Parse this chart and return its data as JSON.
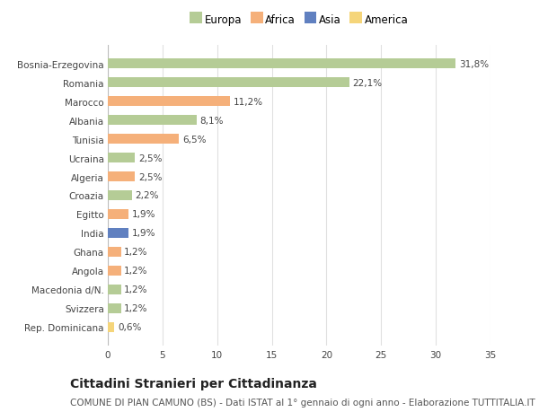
{
  "categories": [
    "Rep. Dominicana",
    "Svizzera",
    "Macedonia d/N.",
    "Angola",
    "Ghana",
    "India",
    "Egitto",
    "Croazia",
    "Algeria",
    "Ucraina",
    "Tunisia",
    "Albania",
    "Marocco",
    "Romania",
    "Bosnia-Erzegovina"
  ],
  "values": [
    0.6,
    1.2,
    1.2,
    1.2,
    1.2,
    1.9,
    1.9,
    2.2,
    2.5,
    2.5,
    6.5,
    8.1,
    11.2,
    22.1,
    31.8
  ],
  "labels": [
    "0,6%",
    "1,2%",
    "1,2%",
    "1,2%",
    "1,2%",
    "1,9%",
    "1,9%",
    "2,2%",
    "2,5%",
    "2,5%",
    "6,5%",
    "8,1%",
    "11,2%",
    "22,1%",
    "31,8%"
  ],
  "colors": [
    "#f5d57a",
    "#b5cc96",
    "#b5cc96",
    "#f5b07a",
    "#f5b07a",
    "#6080c0",
    "#f5b07a",
    "#b5cc96",
    "#f5b07a",
    "#b5cc96",
    "#f5b07a",
    "#b5cc96",
    "#f5b07a",
    "#b5cc96",
    "#b5cc96"
  ],
  "legend": [
    {
      "label": "Europa",
      "color": "#b5cc96"
    },
    {
      "label": "Africa",
      "color": "#f5b07a"
    },
    {
      "label": "Asia",
      "color": "#6080c0"
    },
    {
      "label": "America",
      "color": "#f5d57a"
    }
  ],
  "title": "Cittadini Stranieri per Cittadinanza",
  "subtitle": "COMUNE DI PIAN CAMUNO (BS) - Dati ISTAT al 1° gennaio di ogni anno - Elaborazione TUTTITALIA.IT",
  "xlim": [
    0,
    35
  ],
  "xticks": [
    0,
    5,
    10,
    15,
    20,
    25,
    30,
    35
  ],
  "bg_color": "#ffffff",
  "plot_bg": "#ffffff",
  "grid_color": "#e0e0e0",
  "bar_height": 0.55,
  "title_fontsize": 10,
  "subtitle_fontsize": 7.5,
  "tick_fontsize": 7.5,
  "label_fontsize": 7.5,
  "legend_fontsize": 8.5
}
